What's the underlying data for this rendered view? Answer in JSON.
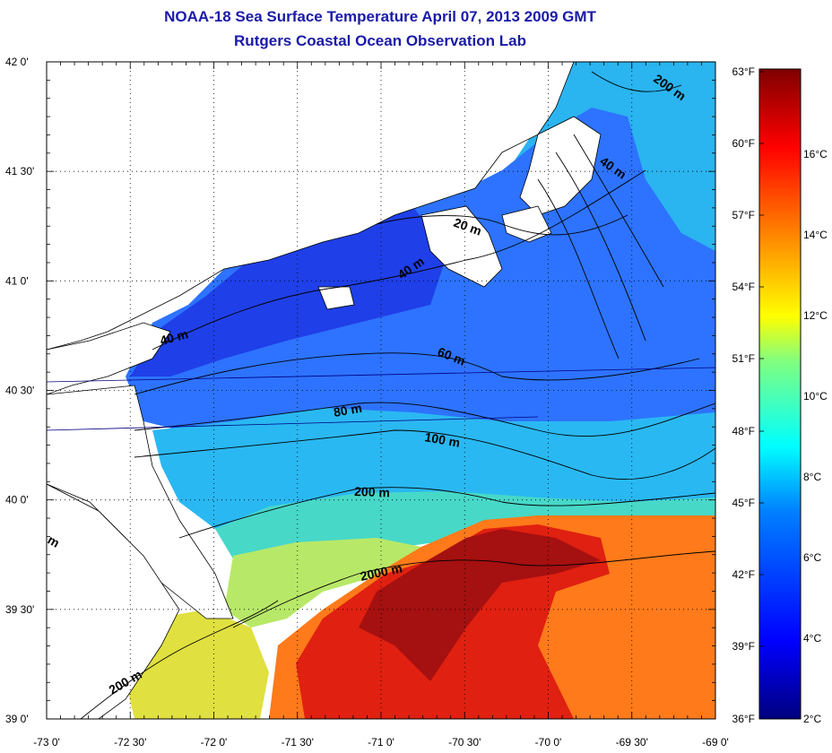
{
  "title": "NOAA-18 Sea Surface Temperature April 07, 2013 2009 GMT",
  "subtitle": "Rutgers Coastal Ocean Observation Lab",
  "map": {
    "lon_range": [
      -73.0,
      -69.0
    ],
    "lat_range": [
      39.0,
      42.0
    ],
    "lon_ticks": [
      "-73 0'",
      "-72 30'",
      "-72 0'",
      "-71 30'",
      "-71 0'",
      "-70 30'",
      "-70 0'",
      "-69 30'",
      "-69 0'"
    ],
    "lat_ticks": [
      "39 0'",
      "39 30'",
      "40 0'",
      "40 30'",
      "41 0'",
      "41 30'",
      "42 0'"
    ],
    "grid": "dotted",
    "isobath_labels": [
      "200 m",
      "40 m",
      "20 m",
      "40 m",
      "40 m",
      "60 m",
      "80 m",
      "100 m",
      "200 m",
      "2000 m",
      "200 m",
      "m"
    ]
  },
  "colorbar": {
    "fahrenheit_labels": [
      "63°F",
      "60°F",
      "57°F",
      "54°F",
      "51°F",
      "48°F",
      "45°F",
      "42°F",
      "39°F",
      "36°F"
    ],
    "celsius_labels": [
      "16°C",
      "14°C",
      "12°C",
      "10°C",
      "8°C",
      "6°C",
      "4°C",
      "2°C"
    ],
    "range_c": [
      2,
      17
    ],
    "colors": [
      "#00007f",
      "#0000ff",
      "#0080ff",
      "#00ffff",
      "#80ff80",
      "#ffff00",
      "#ff8000",
      "#ff0000",
      "#7f0000"
    ]
  }
}
